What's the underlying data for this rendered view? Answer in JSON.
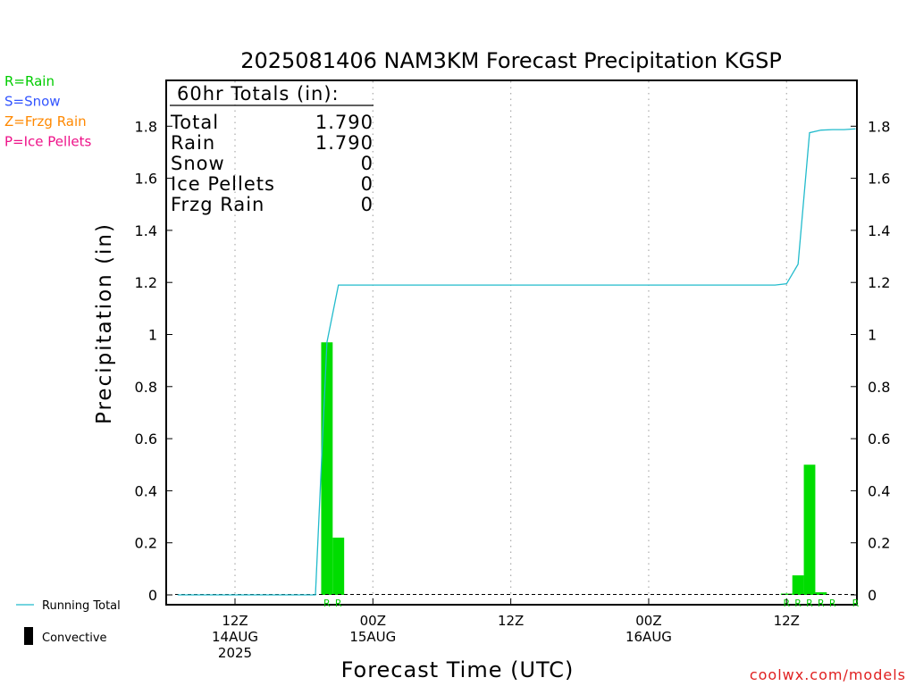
{
  "chart_data": {
    "type": "bar",
    "title": "2025081406 NAM3KM Forecast Precipitation KGSP",
    "xlabel": "Forecast Time (UTC)",
    "ylabel": "Precipitation (in)",
    "ylim": [
      0,
      2.0
    ],
    "y_ticks": [
      0,
      0.2,
      0.4,
      0.6,
      0.8,
      1,
      1.2,
      1.4,
      1.6,
      1.8
    ],
    "y_tick_labels": [
      "0",
      "0.2",
      "0.4",
      "0.6",
      "0.8",
      "1",
      "1.2",
      "1.4",
      "1.6",
      "1.8"
    ],
    "x_range_hours": [
      6.75,
      66
    ],
    "x_ticks": [
      {
        "hour": 12,
        "lines": [
          "12Z",
          "14AUG",
          "2025"
        ]
      },
      {
        "hour": 24,
        "lines": [
          "00Z",
          "15AUG"
        ]
      },
      {
        "hour": 36,
        "lines": [
          "12Z"
        ]
      },
      {
        "hour": 48,
        "lines": [
          "00Z",
          "16AUG"
        ]
      },
      {
        "hour": 60,
        "lines": [
          "12Z"
        ]
      }
    ],
    "grid": "vertical dotted at ticks",
    "bars": {
      "series_type": "rain",
      "bar_width_hours": 1,
      "hours": [
        20,
        21,
        60,
        61,
        62,
        63
      ],
      "values": [
        0.97,
        0.22,
        0.005,
        0.075,
        0.5,
        0.01
      ]
    },
    "running_total": {
      "hours": [
        7,
        19,
        20,
        21,
        22,
        59,
        60,
        61,
        62,
        63,
        64,
        65,
        66
      ],
      "values": [
        0,
        0,
        0.97,
        1.19,
        1.19,
        1.19,
        1.195,
        1.27,
        1.775,
        1.785,
        1.787,
        1.787,
        1.79
      ]
    },
    "ptype_marks": {
      "hours": [
        20,
        21,
        60,
        61,
        62,
        63,
        64,
        66
      ],
      "letters": [
        "R",
        "R",
        "R",
        "R",
        "R",
        "R",
        "R",
        "R"
      ]
    },
    "totals_box": {
      "header": "60hr Totals (in):",
      "rows": [
        {
          "label": "Total",
          "value": "1.790"
        },
        {
          "label": "Rain",
          "value": "1.790"
        },
        {
          "label": "Snow",
          "value": "0"
        },
        {
          "label": "Ice Pellets",
          "value": "0"
        },
        {
          "label": "Frzg Rain",
          "value": "0"
        }
      ]
    },
    "ptype_legend": [
      {
        "text": "R=Rain",
        "color": "#00cc00"
      },
      {
        "text": "S=Snow",
        "color": "#3355ff"
      },
      {
        "text": "Z=Frzg Rain",
        "color": "#ff8800"
      },
      {
        "text": "P=Ice Pellets",
        "color": "#ee1188"
      }
    ],
    "line_legend": {
      "running_total": "Running Total",
      "convective": "Convective"
    },
    "colors": {
      "bars": "#00dd00",
      "running_total": "#22bbcc",
      "ptype_letter": "#00cc00",
      "axis": "#000000",
      "credit": "#e02020"
    }
  },
  "credit": "coolwx.com/models"
}
